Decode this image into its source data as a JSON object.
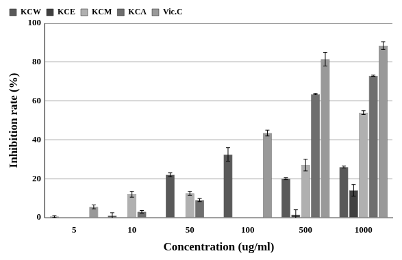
{
  "chart_data": {
    "type": "bar",
    "x_label": "Concentration (ug/ml)",
    "y_label": "Inhibition rate (%)",
    "categories": [
      "5",
      "10",
      "50",
      "100",
      "500",
      "1000"
    ],
    "series": [
      {
        "name": "KCW",
        "color": "#595959",
        "values": [
          0.5,
          1,
          22,
          32.5,
          20,
          26
        ],
        "errors": [
          0.5,
          1.5,
          1,
          3.5,
          0.5,
          0.5
        ]
      },
      {
        "name": "KCE",
        "color": "#404040",
        "values": [
          0,
          0,
          0,
          0,
          1.5,
          14
        ],
        "errors": [
          0,
          0,
          0,
          0,
          2.5,
          3
        ]
      },
      {
        "name": "KCM",
        "color": "#b0b0b0",
        "values": [
          0,
          12,
          12.5,
          0,
          27,
          54
        ],
        "errors": [
          0,
          1.5,
          1,
          0,
          3,
          1
        ]
      },
      {
        "name": "KCA",
        "color": "#6e6e6e",
        "values": [
          0,
          3,
          9,
          0,
          63.5,
          73
        ],
        "errors": [
          0,
          0.7,
          0.8,
          0,
          0.3,
          0.3
        ]
      },
      {
        "name": "Vic.C",
        "color": "#999999",
        "values": [
          5.5,
          0,
          0,
          43.5,
          81.5,
          88.5
        ],
        "errors": [
          1,
          0,
          0,
          1.5,
          3.5,
          2
        ]
      }
    ],
    "ylim": [
      0,
      100
    ],
    "yticks": [
      0,
      20,
      40,
      60,
      80,
      100
    ],
    "grid": true,
    "legend": "upper left"
  }
}
